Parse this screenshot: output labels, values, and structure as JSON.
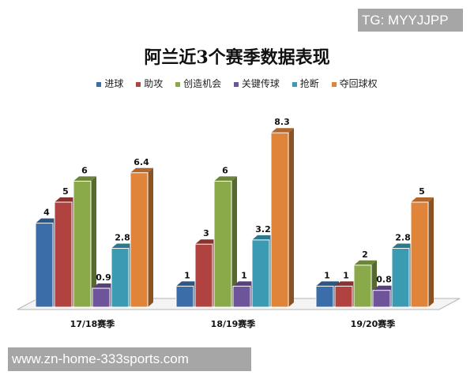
{
  "watermarks": {
    "top": "TG: MYYJJPP",
    "bottom": "www.zn-home-333sports.com"
  },
  "chart_data": {
    "type": "bar",
    "title": "阿兰近3个赛季数据表现",
    "categories": [
      "17/18赛季",
      "18/19赛季",
      "19/20赛季"
    ],
    "series": [
      {
        "name": "进球",
        "color": "#3b6ea8",
        "values": [
          4,
          1,
          1
        ]
      },
      {
        "name": "助攻",
        "color": "#b0423f",
        "values": [
          5,
          3,
          1
        ]
      },
      {
        "name": "创造机会",
        "color": "#8aaa4a",
        "values": [
          6,
          6,
          2
        ]
      },
      {
        "name": "关键传球",
        "color": "#6e549a",
        "values": [
          0.9,
          1,
          0.8
        ]
      },
      {
        "name": "抢断",
        "color": "#3a9bb3",
        "values": [
          2.8,
          3.2,
          2.8
        ]
      },
      {
        "name": "夺回球权",
        "color": "#e0843a",
        "values": [
          6.4,
          8.3,
          5
        ]
      }
    ],
    "xlabel": "",
    "ylabel": "",
    "ylim": [
      0,
      8.3
    ],
    "grid": false,
    "legend_position": "top",
    "style": "3d-column"
  }
}
